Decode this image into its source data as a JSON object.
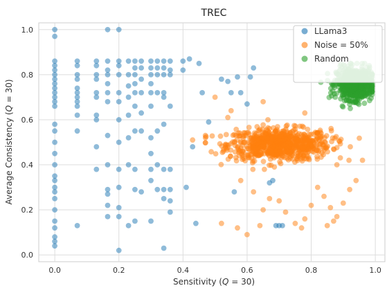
{
  "chart_data": {
    "type": "scatter",
    "title": "TREC",
    "xlabel": "Sensitivity (Q = 30)",
    "ylabel": "Average Consistency (Q = 30)",
    "xlim": [
      -0.05,
      1.03
    ],
    "ylim": [
      -0.03,
      1.03
    ],
    "xticks": [
      "0.0",
      "0.2",
      "0.4",
      "0.6",
      "0.8",
      "1.0"
    ],
    "yticks": [
      "0.0",
      "0.2",
      "0.4",
      "0.6",
      "0.8",
      "1.0"
    ],
    "grid": true,
    "legend_position": "top-right",
    "series": [
      {
        "name": "LLama3",
        "color": "#1f77b4",
        "points": [
          [
            0.0,
            1.0
          ],
          [
            0.0,
            0.97
          ],
          [
            0.0,
            0.86
          ],
          [
            0.0,
            0.84
          ],
          [
            0.0,
            0.82
          ],
          [
            0.0,
            0.8
          ],
          [
            0.0,
            0.78
          ],
          [
            0.0,
            0.76
          ],
          [
            0.0,
            0.74
          ],
          [
            0.0,
            0.72
          ],
          [
            0.0,
            0.7
          ],
          [
            0.0,
            0.68
          ],
          [
            0.0,
            0.66
          ],
          [
            0.0,
            0.58
          ],
          [
            0.0,
            0.55
          ],
          [
            0.0,
            0.5
          ],
          [
            0.0,
            0.45
          ],
          [
            0.0,
            0.4
          ],
          [
            0.0,
            0.35
          ],
          [
            0.0,
            0.33
          ],
          [
            0.0,
            0.3
          ],
          [
            0.0,
            0.28
          ],
          [
            0.0,
            0.25
          ],
          [
            0.0,
            0.2
          ],
          [
            0.0,
            0.15
          ],
          [
            0.0,
            0.12
          ],
          [
            0.0,
            0.08
          ],
          [
            0.0,
            0.06
          ],
          [
            0.0,
            0.04
          ],
          [
            0.07,
            0.86
          ],
          [
            0.07,
            0.84
          ],
          [
            0.07,
            0.8
          ],
          [
            0.07,
            0.78
          ],
          [
            0.07,
            0.74
          ],
          [
            0.07,
            0.72
          ],
          [
            0.07,
            0.7
          ],
          [
            0.07,
            0.68
          ],
          [
            0.07,
            0.66
          ],
          [
            0.07,
            0.62
          ],
          [
            0.07,
            0.55
          ],
          [
            0.07,
            0.13
          ],
          [
            0.13,
            0.86
          ],
          [
            0.13,
            0.84
          ],
          [
            0.13,
            0.8
          ],
          [
            0.13,
            0.78
          ],
          [
            0.13,
            0.72
          ],
          [
            0.13,
            0.7
          ],
          [
            0.13,
            0.62
          ],
          [
            0.13,
            0.6
          ],
          [
            0.13,
            0.48
          ],
          [
            0.13,
            0.38
          ],
          [
            0.165,
            1.0
          ],
          [
            0.165,
            0.86
          ],
          [
            0.165,
            0.82
          ],
          [
            0.165,
            0.8
          ],
          [
            0.165,
            0.76
          ],
          [
            0.165,
            0.72
          ],
          [
            0.165,
            0.68
          ],
          [
            0.165,
            0.53
          ],
          [
            0.165,
            0.4
          ],
          [
            0.165,
            0.29
          ],
          [
            0.165,
            0.27
          ],
          [
            0.165,
            0.22
          ],
          [
            0.165,
            0.17
          ],
          [
            0.2,
            1.0
          ],
          [
            0.2,
            0.86
          ],
          [
            0.2,
            0.84
          ],
          [
            0.2,
            0.8
          ],
          [
            0.2,
            0.72
          ],
          [
            0.2,
            0.68
          ],
          [
            0.2,
            0.6
          ],
          [
            0.2,
            0.5
          ],
          [
            0.2,
            0.38
          ],
          [
            0.2,
            0.3
          ],
          [
            0.2,
            0.21
          ],
          [
            0.2,
            0.17
          ],
          [
            0.2,
            0.02
          ],
          [
            0.23,
            0.86
          ],
          [
            0.23,
            0.8
          ],
          [
            0.23,
            0.75
          ],
          [
            0.23,
            0.7
          ],
          [
            0.23,
            0.62
          ],
          [
            0.23,
            0.52
          ],
          [
            0.23,
            0.4
          ],
          [
            0.23,
            0.13
          ],
          [
            0.25,
            0.86
          ],
          [
            0.25,
            0.83
          ],
          [
            0.25,
            0.8
          ],
          [
            0.25,
            0.76
          ],
          [
            0.25,
            0.72
          ],
          [
            0.25,
            0.66
          ],
          [
            0.25,
            0.55
          ],
          [
            0.25,
            0.38
          ],
          [
            0.25,
            0.29
          ],
          [
            0.25,
            0.15
          ],
          [
            0.27,
            0.86
          ],
          [
            0.27,
            0.83
          ],
          [
            0.27,
            0.78
          ],
          [
            0.27,
            0.72
          ],
          [
            0.27,
            0.63
          ],
          [
            0.27,
            0.55
          ],
          [
            0.27,
            0.28
          ],
          [
            0.3,
            0.86
          ],
          [
            0.3,
            0.83
          ],
          [
            0.3,
            0.8
          ],
          [
            0.3,
            0.76
          ],
          [
            0.3,
            0.72
          ],
          [
            0.3,
            0.66
          ],
          [
            0.3,
            0.52
          ],
          [
            0.3,
            0.45
          ],
          [
            0.3,
            0.38
          ],
          [
            0.3,
            0.33
          ],
          [
            0.3,
            0.15
          ],
          [
            0.32,
            0.86
          ],
          [
            0.32,
            0.83
          ],
          [
            0.32,
            0.8
          ],
          [
            0.32,
            0.72
          ],
          [
            0.32,
            0.55
          ],
          [
            0.32,
            0.4
          ],
          [
            0.32,
            0.29
          ],
          [
            0.34,
            0.86
          ],
          [
            0.34,
            0.83
          ],
          [
            0.34,
            0.8
          ],
          [
            0.34,
            0.72
          ],
          [
            0.34,
            0.7
          ],
          [
            0.34,
            0.58
          ],
          [
            0.34,
            0.38
          ],
          [
            0.34,
            0.29
          ],
          [
            0.34,
            0.25
          ],
          [
            0.34,
            0.03
          ],
          [
            0.36,
            0.86
          ],
          [
            0.36,
            0.82
          ],
          [
            0.36,
            0.8
          ],
          [
            0.36,
            0.66
          ],
          [
            0.36,
            0.38
          ],
          [
            0.36,
            0.29
          ],
          [
            0.36,
            0.24
          ],
          [
            0.36,
            0.19
          ],
          [
            0.4,
            0.86
          ],
          [
            0.4,
            0.82
          ],
          [
            0.41,
            0.3
          ],
          [
            0.42,
            0.87
          ],
          [
            0.43,
            0.48
          ],
          [
            0.44,
            0.14
          ],
          [
            0.45,
            0.85
          ],
          [
            0.46,
            0.72
          ],
          [
            0.48,
            0.59
          ],
          [
            0.52,
            0.78
          ],
          [
            0.54,
            0.77
          ],
          [
            0.55,
            0.72
          ],
          [
            0.57,
            0.79
          ],
          [
            0.58,
            0.72
          ],
          [
            0.6,
            0.67
          ],
          [
            0.61,
            0.79
          ],
          [
            0.62,
            0.83
          ],
          [
            0.56,
            0.28
          ],
          [
            0.67,
            0.32
          ],
          [
            0.68,
            0.33
          ],
          [
            0.69,
            0.13
          ],
          [
            0.7,
            0.13
          ],
          [
            0.71,
            0.13
          ]
        ]
      },
      {
        "name": "Noise = 50%",
        "color": "#ff7f0e",
        "points": []
      },
      {
        "name": "Random",
        "color": "#2ca02c",
        "points": []
      }
    ]
  }
}
